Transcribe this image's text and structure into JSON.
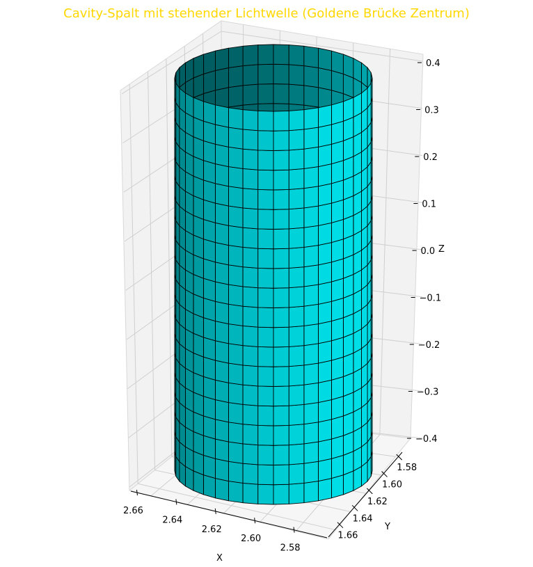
{
  "chart_data": {
    "type": "surface3d",
    "title": "Cavity-Spalt mit stehender Lichtwelle (Goldene Brücke Zentrum)",
    "title_color": "#FFD700",
    "surface_color": "#00E5EE",
    "edge_color": "#000000",
    "shape": "cylinder",
    "center": {
      "x": 2.618,
      "y": 1.618
    },
    "radius": 0.03,
    "z_range": [
      -0.4,
      0.4
    ],
    "angular_segments": 40,
    "height_segments": 20,
    "xlabel": "X",
    "ylabel": "Y",
    "zlabel": "Z",
    "x_ticks": [
      "2.66",
      "2.64",
      "2.62",
      "2.60",
      "2.58"
    ],
    "y_ticks": [
      "1.58",
      "1.60",
      "1.62",
      "1.64",
      "1.66"
    ],
    "z_ticks": [
      "0.4",
      "0.3",
      "0.2",
      "0.1",
      "0.0",
      "−0.1",
      "−0.2",
      "−0.3",
      "−0.4"
    ],
    "grid": true,
    "pane_color": "#f2f2f2"
  }
}
